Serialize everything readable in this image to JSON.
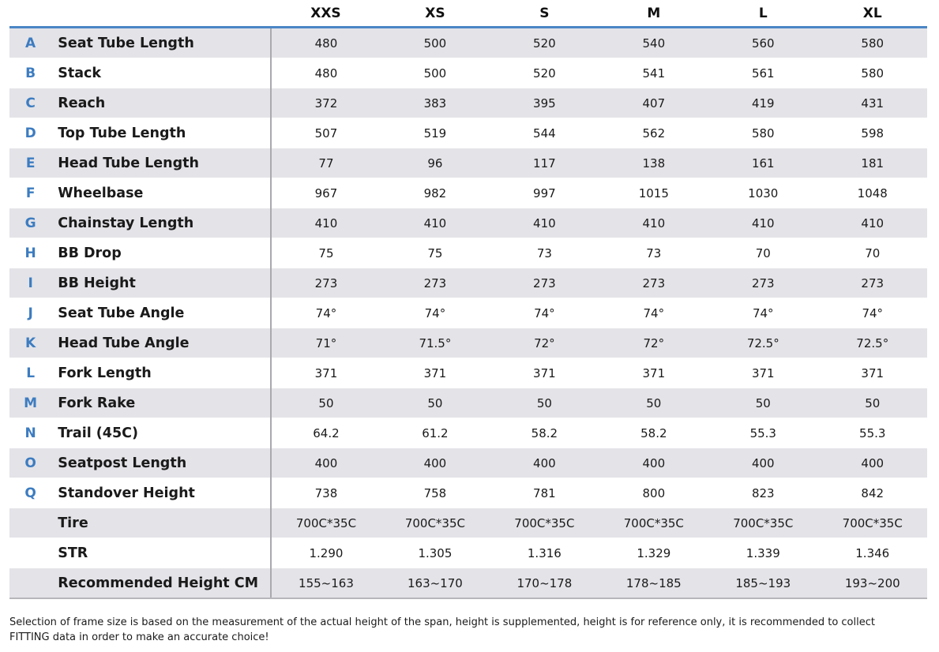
{
  "headers": [
    "XXS",
    "XS",
    "S",
    "M",
    "L",
    "XL"
  ],
  "rows": [
    {
      "letter": "A",
      "name": "Seat Tube Length",
      "values": [
        "480",
        "500",
        "520",
        "540",
        "560",
        "580"
      ]
    },
    {
      "letter": "B",
      "name": "Stack",
      "values": [
        "480",
        "500",
        "520",
        "541",
        "561",
        "580"
      ]
    },
    {
      "letter": "C",
      "name": "Reach",
      "values": [
        "372",
        "383",
        "395",
        "407",
        "419",
        "431"
      ]
    },
    {
      "letter": "D",
      "name": "Top Tube Length",
      "values": [
        "507",
        "519",
        "544",
        "562",
        "580",
        "598"
      ]
    },
    {
      "letter": "E",
      "name": "Head Tube Length",
      "values": [
        "77",
        "96",
        "117",
        "138",
        "161",
        "181"
      ]
    },
    {
      "letter": "F",
      "name": "Wheelbase",
      "values": [
        "967",
        "982",
        "997",
        "1015",
        "1030",
        "1048"
      ]
    },
    {
      "letter": "G",
      "name": "Chainstay Length",
      "values": [
        "410",
        "410",
        "410",
        "410",
        "410",
        "410"
      ]
    },
    {
      "letter": "H",
      "name": "BB Drop",
      "values": [
        "75",
        "75",
        "73",
        "73",
        "70",
        "70"
      ]
    },
    {
      "letter": "I",
      "name": "BB Height",
      "values": [
        "273",
        "273",
        "273",
        "273",
        "273",
        "273"
      ]
    },
    {
      "letter": "J",
      "name": "Seat Tube Angle",
      "values": [
        "74°",
        "74°",
        "74°",
        "74°",
        "74°",
        "74°"
      ]
    },
    {
      "letter": "K",
      "name": "Head Tube Angle",
      "values": [
        "71°",
        "71.5°",
        "72°",
        "72°",
        "72.5°",
        "72.5°"
      ]
    },
    {
      "letter": "L",
      "name": "Fork Length",
      "values": [
        "371",
        "371",
        "371",
        "371",
        "371",
        "371"
      ]
    },
    {
      "letter": "M",
      "name": "Fork Rake",
      "values": [
        "50",
        "50",
        "50",
        "50",
        "50",
        "50"
      ]
    },
    {
      "letter": "N",
      "name": "Trail (45C)",
      "values": [
        "64.2",
        "61.2",
        "58.2",
        "58.2",
        "55.3",
        "55.3"
      ]
    },
    {
      "letter": "O",
      "name": "Seatpost Length",
      "values": [
        "400",
        "400",
        "400",
        "400",
        "400",
        "400"
      ]
    },
    {
      "letter": "Q",
      "name": "Standover Height",
      "values": [
        "738",
        "758",
        "781",
        "800",
        "823",
        "842"
      ]
    },
    {
      "letter": "",
      "name": "Tire",
      "values": [
        "700C*35C",
        "700C*35C",
        "700C*35C",
        "700C*35C",
        "700C*35C",
        "700C*35C"
      ]
    },
    {
      "letter": "",
      "name": "STR",
      "values": [
        "1.290",
        "1.305",
        "1.316",
        "1.329",
        "1.339",
        "1.346"
      ]
    },
    {
      "letter": "",
      "name": "Recommended Height CM",
      "values": [
        "155~163",
        "163~170",
        "170~178",
        "178~185",
        "185~193",
        "193~200"
      ]
    }
  ],
  "footnote": "Selection of frame size is based on the measurement of the actual height of the span, height is supplemented, height is for reference only, it is recommended to collect FITTING data in order to make an accurate choice!",
  "colors": {
    "accent": "#4a86c5",
    "letter": "#3d7cc0",
    "row_shade": "#e3e3e8"
  }
}
